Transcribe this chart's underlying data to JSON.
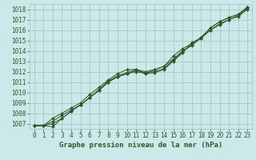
{
  "title": "Graphe pression niveau de la mer (hPa)",
  "bg_color": "#cce8e8",
  "grid_color": "#aacccc",
  "line_color": "#2d5a27",
  "x_ticks": [
    0,
    1,
    2,
    3,
    4,
    5,
    6,
    7,
    8,
    9,
    10,
    11,
    12,
    13,
    14,
    15,
    16,
    17,
    18,
    19,
    20,
    21,
    22,
    23
  ],
  "y_ticks": [
    1007,
    1008,
    1009,
    1010,
    1011,
    1012,
    1013,
    1014,
    1015,
    1016,
    1017,
    1018
  ],
  "ylim": [
    1006.5,
    1018.5
  ],
  "xlim": [
    -0.5,
    23.5
  ],
  "series": [
    [
      1006.8,
      1006.8,
      1006.7,
      1007.5,
      1008.2,
      1008.8,
      1009.5,
      1010.2,
      1011.0,
      1011.5,
      1011.8,
      1012.0,
      1011.8,
      1011.9,
      1012.2,
      1013.0,
      1013.8,
      1014.8,
      1015.2,
      1016.2,
      1016.8,
      1017.2,
      1017.5,
      1018.2
    ],
    [
      1006.8,
      1006.8,
      1007.0,
      1007.5,
      1008.2,
      1008.8,
      1009.5,
      1010.3,
      1011.1,
      1011.6,
      1011.9,
      1012.2,
      1012.0,
      1012.2,
      1012.5,
      1013.2,
      1014.0,
      1014.5,
      1015.3,
      1016.0,
      1016.5,
      1017.0,
      1017.3,
      1018.0
    ],
    [
      1006.8,
      1006.8,
      1007.5,
      1008.0,
      1008.5,
      1009.0,
      1009.8,
      1010.5,
      1011.2,
      1011.8,
      1012.2,
      1012.2,
      1011.8,
      1012.2,
      1012.5,
      1013.5,
      1014.2,
      1014.7,
      1015.3,
      1016.2,
      1016.8,
      1017.2,
      1017.5,
      1018.2
    ],
    [
      1006.8,
      1006.8,
      1007.2,
      1007.8,
      1008.3,
      1008.8,
      1009.5,
      1010.2,
      1011.0,
      1011.5,
      1011.8,
      1012.1,
      1011.9,
      1012.0,
      1012.3,
      1013.1,
      1013.9,
      1014.6,
      1015.2,
      1016.0,
      1016.6,
      1017.0,
      1017.4,
      1018.1
    ]
  ]
}
